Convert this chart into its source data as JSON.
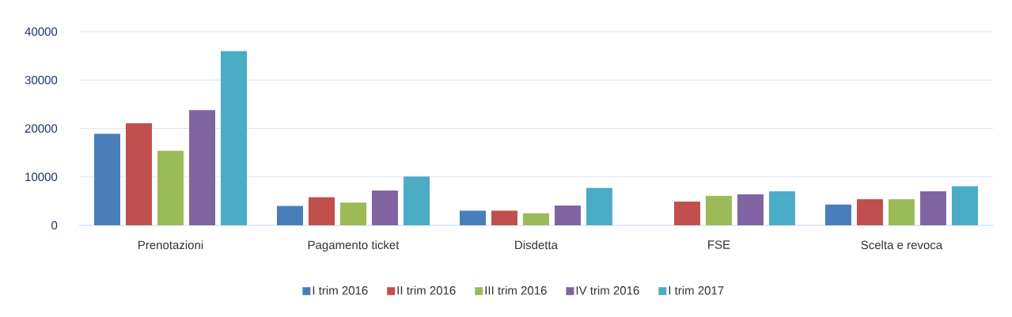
{
  "chart_data": {
    "type": "bar",
    "categories": [
      "Prenotazioni",
      "Pagamento ticket",
      "Disdetta",
      "FSE",
      "Scelta e revoca"
    ],
    "series": [
      {
        "name": "I trim 2016",
        "color": "#4a7ebb",
        "values": [
          18900,
          4000,
          3000,
          null,
          4300
        ]
      },
      {
        "name": "II trim 2016",
        "color": "#c0504d",
        "values": [
          21100,
          5800,
          3000,
          4900,
          5400
        ]
      },
      {
        "name": "III trim 2016",
        "color": "#9bbb59",
        "values": [
          15400,
          4700,
          2500,
          6100,
          5400
        ]
      },
      {
        "name": "IV trim 2016",
        "color": "#8064a2",
        "values": [
          23800,
          7200,
          4100,
          6400,
          7000
        ]
      },
      {
        "name": "I trim 2017",
        "color": "#4bacc6",
        "values": [
          36000,
          10100,
          7700,
          7000,
          8100
        ]
      }
    ],
    "ylim": [
      0,
      40000
    ],
    "yticks": [
      0,
      10000,
      20000,
      30000,
      40000
    ],
    "grid": "y",
    "legend": "bottom"
  }
}
